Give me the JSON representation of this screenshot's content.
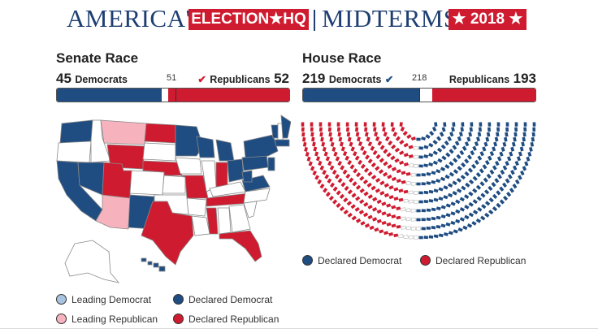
{
  "header": {
    "title_left": "AMERICA'S",
    "title_box": "ELECTION★HQ",
    "title_right": "MIDTERMS",
    "year_box": "★ 2018 ★"
  },
  "senate": {
    "title": "Senate Race",
    "dem_count": "45",
    "dem_label": "Democrats",
    "majority": "51",
    "rep_count": "52",
    "rep_label": "Republicans",
    "check": "✔",
    "dem_fraction": 0.45,
    "rep_fraction": 0.52,
    "majority_fraction": 0.51
  },
  "house": {
    "title": "House Race",
    "dem_count": "219",
    "dem_label": "Democrats",
    "majority": "218",
    "rep_count": "193",
    "rep_label": "Republicans",
    "check": "✔",
    "dem_fraction": 0.5034,
    "rep_fraction": 0.4437,
    "majority_fraction": 0.5011
  },
  "map_legend": [
    {
      "label": "Leading Democrat",
      "color": "#a8c4e0"
    },
    {
      "label": "Declared Democrat",
      "color": "#1f4d82"
    },
    {
      "label": "Leading Republican",
      "color": "#f6b3bd"
    },
    {
      "label": "Declared Republican",
      "color": "#cf1b2f"
    }
  ],
  "house_legend": [
    {
      "label": "Declared Democrat",
      "color": "#1f4d82"
    },
    {
      "label": "Declared Republican",
      "color": "#cf1b2f"
    }
  ],
  "colors": {
    "dem": "#1f4d82",
    "rep": "#cf1b2f",
    "lead_dem": "#a8c4e0",
    "lead_rep": "#f6b3bd",
    "none": "#ffffff"
  }
}
